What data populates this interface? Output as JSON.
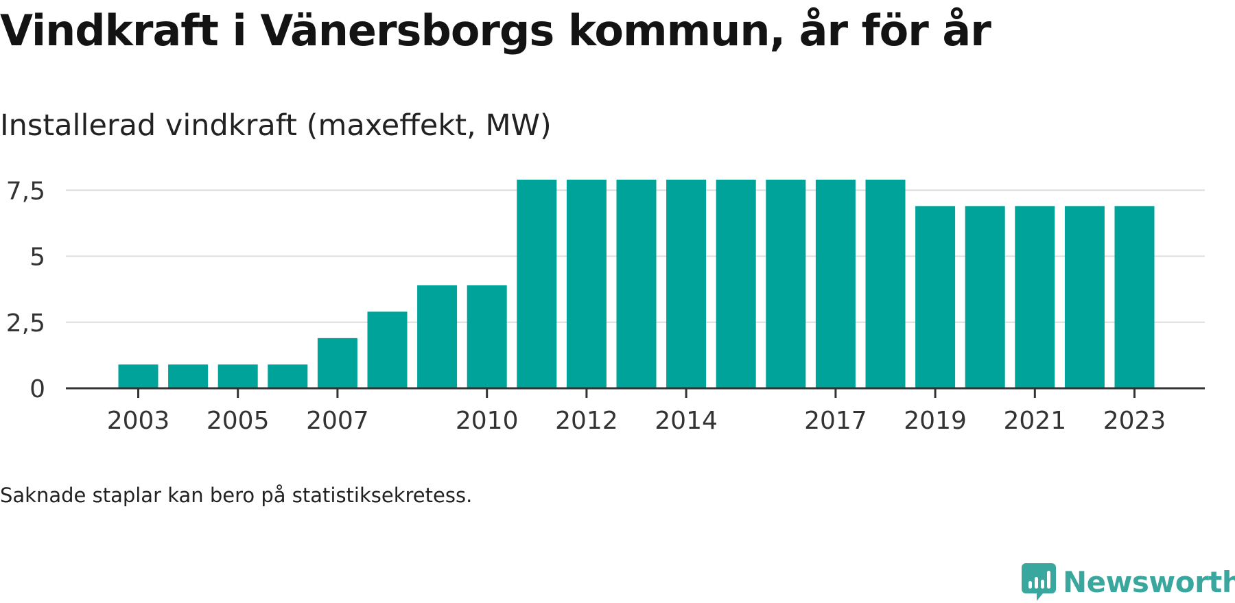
{
  "chart_data": {
    "type": "bar",
    "title": "Vindkraft i Vänersborgs kommun, år för år",
    "subtitle": "Installerad vindkraft (maxeffekt, MW)",
    "categories": [
      2003,
      2004,
      2005,
      2006,
      2007,
      2008,
      2009,
      2010,
      2011,
      2012,
      2013,
      2014,
      2015,
      2016,
      2017,
      2018,
      2019,
      2020,
      2021,
      2022,
      2023
    ],
    "values": [
      0.9,
      0.9,
      0.9,
      0.9,
      1.9,
      2.9,
      3.9,
      3.9,
      7.9,
      7.9,
      7.9,
      7.9,
      7.9,
      7.9,
      7.9,
      7.9,
      6.9,
      6.9,
      6.9,
      6.9,
      6.9
    ],
    "x_tick_labels": [
      "2003",
      "2005",
      "2007",
      "2010",
      "2012",
      "2014",
      "2017",
      "2019",
      "2021",
      "2023"
    ],
    "y_ticks": [
      0,
      2.5,
      5,
      7.5
    ],
    "y_tick_labels": [
      "0",
      "2,5",
      "5",
      "7,5"
    ],
    "ylim": [
      0,
      8
    ],
    "grid": true,
    "bar_color": "#00a39a",
    "note": "Saknade staplar kan bero på statistiksekretess."
  },
  "brand": {
    "name": "Newsworthy",
    "color": "#3aa79e",
    "icon": "chat-bar-chart-icon"
  }
}
